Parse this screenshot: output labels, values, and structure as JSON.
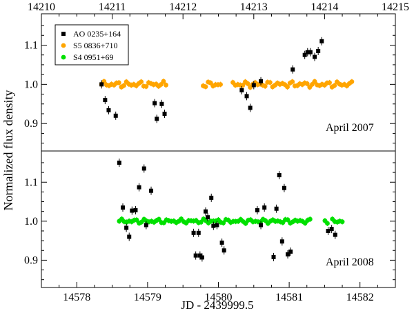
{
  "chart_data": {
    "type": "scatter",
    "ylabel": "Normalized flux density",
    "xlabel": "JD - 2439999.5",
    "panels": [
      {
        "label": "April 2007",
        "x_axis": "top",
        "xlim": [
          14210,
          14215
        ],
        "xticks": [
          14210,
          14211,
          14212,
          14213,
          14214,
          14215
        ],
        "ylim": [
          0.83,
          1.18
        ],
        "yticks": [
          0.9,
          1.0,
          1.1
        ],
        "legend_position": "top-left",
        "series": [
          {
            "name": "AO 0235+164",
            "color": "#000000",
            "marker": "square",
            "points": [
              [
                14210.85,
                1.0
              ],
              [
                14210.9,
                0.96
              ],
              [
                14210.95,
                0.934
              ],
              [
                14211.05,
                0.92
              ],
              [
                14211.6,
                0.952
              ],
              [
                14211.63,
                0.912
              ],
              [
                14211.7,
                0.95
              ],
              [
                14211.74,
                0.925
              ],
              [
                14212.83,
                0.985
              ],
              [
                14212.9,
                0.97
              ],
              [
                14212.95,
                0.94
              ],
              [
                14213.0,
                0.998
              ],
              [
                14213.1,
                1.008
              ],
              [
                14213.55,
                1.038
              ],
              [
                14213.72,
                1.075
              ],
              [
                14213.76,
                1.082
              ],
              [
                14213.8,
                1.082
              ],
              [
                14213.86,
                1.07
              ],
              [
                14213.91,
                1.085
              ],
              [
                14213.96,
                1.11
              ]
            ]
          },
          {
            "name": "S5 0836+710",
            "color": "#FFA500",
            "marker": "circle",
            "x_range": [
              14210.85,
              14214.4
            ],
            "gaps": [
              [
                14211.77,
                14212.28
              ],
              [
                14212.55,
                14212.67
              ]
            ],
            "base": 1.0,
            "amplitude": 0.008
          },
          {
            "name": "S4 0951+69",
            "color": "#00E000",
            "marker": "circle"
          }
        ]
      },
      {
        "label": "April 2008",
        "x_axis": "bottom",
        "xlim": [
          14577.5,
          14582.5
        ],
        "xticks": [
          14578,
          14579,
          14580,
          14581,
          14582
        ],
        "ylim": [
          0.83,
          1.18
        ],
        "yticks": [
          0.9,
          1.0,
          1.1
        ],
        "series": [
          {
            "name": "AO 0235+164",
            "color": "#000000",
            "marker": "square",
            "points": [
              [
                14578.6,
                1.15
              ],
              [
                14578.65,
                1.035
              ],
              [
                14578.7,
                0.983
              ],
              [
                14578.74,
                0.96
              ],
              [
                14578.78,
                1.027
              ],
              [
                14578.83,
                1.028
              ],
              [
                14578.88,
                1.087
              ],
              [
                14578.95,
                1.135
              ],
              [
                14578.98,
                0.99
              ],
              [
                14579.05,
                1.078
              ],
              [
                14579.65,
                0.97
              ],
              [
                14579.68,
                0.912
              ],
              [
                14579.72,
                0.97
              ],
              [
                14579.74,
                0.912
              ],
              [
                14579.77,
                0.907
              ],
              [
                14579.82,
                1.025
              ],
              [
                14579.85,
                1.01
              ],
              [
                14579.9,
                1.06
              ],
              [
                14579.93,
                0.988
              ],
              [
                14579.98,
                0.99
              ],
              [
                14580.05,
                0.945
              ],
              [
                14580.08,
                0.925
              ],
              [
                14580.55,
                1.028
              ],
              [
                14580.6,
                0.99
              ],
              [
                14580.65,
                1.035
              ],
              [
                14580.78,
                0.908
              ],
              [
                14580.82,
                1.032
              ],
              [
                14580.86,
                1.118
              ],
              [
                14580.9,
                0.948
              ],
              [
                14580.93,
                1.085
              ],
              [
                14580.98,
                0.915
              ],
              [
                14581.02,
                0.922
              ],
              [
                14581.55,
                0.975
              ],
              [
                14581.6,
                0.98
              ],
              [
                14581.65,
                0.965
              ]
            ]
          },
          {
            "name": "S4 0951+69",
            "color": "#00E000",
            "marker": "circle",
            "x_range": [
              14578.6,
              14581.75
            ],
            "gaps": [
              [
                14581.32,
                14581.47
              ],
              [
                14581.55,
                14581.58
              ]
            ],
            "base": 1.0,
            "amplitude": 0.006
          }
        ]
      }
    ]
  }
}
